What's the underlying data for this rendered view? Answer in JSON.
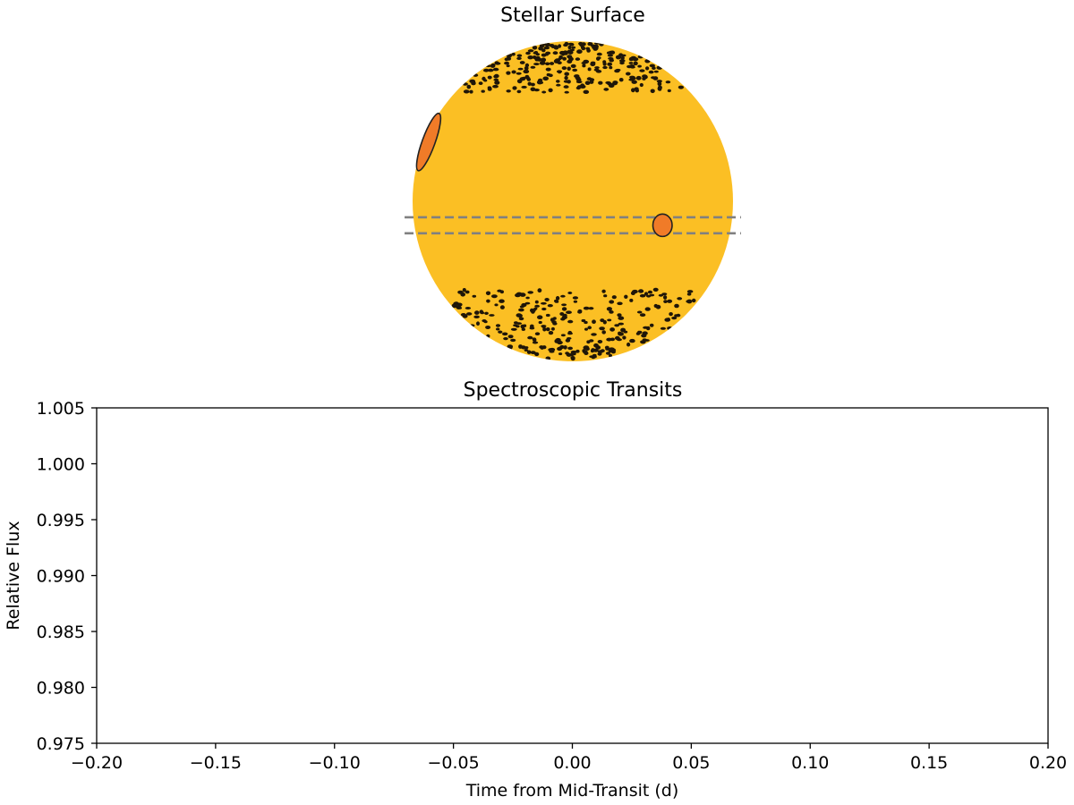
{
  "colors": {
    "star": "#fbbf24",
    "planet": "#f07b28",
    "spot_fill": "#1f1608",
    "outline": "#222222",
    "path_line": "#808080",
    "axes": "#000000",
    "background": "#ffffff"
  },
  "icons": {
    "star": "star-disk-icon",
    "planet": "planet-disk-icon"
  },
  "chart_data": [
    {
      "type": "other",
      "description_kind": "stellar-surface-map",
      "title": "Stellar Surface",
      "axes_visible": false,
      "coordinate_system": "normalized stellar disk, x and y in units of stellar radius",
      "star": {
        "center": [
          0,
          0
        ],
        "radius": 1
      },
      "transit_chord": {
        "y_range": [
          -0.2,
          -0.1
        ],
        "line_style": "dashed"
      },
      "planets": [
        {
          "id": "planet-on-chord",
          "center": [
            0.56,
            -0.15
          ],
          "rx": 0.06,
          "ry": 0.07,
          "rotation_deg": 0
        },
        {
          "id": "planet-near-limb",
          "center": [
            -0.9,
            0.37
          ],
          "rx": 0.04,
          "ry": 0.19,
          "rotation_deg": 20
        }
      ],
      "spot_bands": [
        {
          "id": "north",
          "y_range": [
            0.68,
            0.99
          ],
          "approx_count": 260
        },
        {
          "id": "south",
          "y_range": [
            -0.99,
            -0.55
          ],
          "approx_count": 260
        }
      ]
    },
    {
      "type": "line",
      "title": "Spectroscopic Transits",
      "xlabel": "Time from Mid-Transit (d)",
      "ylabel": "Relative Flux",
      "xlim": [
        -0.2,
        0.2
      ],
      "ylim": [
        0.975,
        1.005
      ],
      "x_ticks": [
        -0.2,
        -0.15,
        -0.1,
        -0.05,
        0.0,
        0.05,
        0.1,
        0.15,
        0.2
      ],
      "x_tick_labels": [
        "−0.20",
        "−0.15",
        "−0.10",
        "−0.05",
        "0.00",
        "0.05",
        "0.10",
        "0.15",
        "0.20"
      ],
      "y_ticks": [
        0.975,
        0.98,
        0.985,
        0.99,
        0.995,
        1.0,
        1.005
      ],
      "y_tick_labels": [
        "0.975",
        "0.980",
        "0.985",
        "0.990",
        "0.995",
        "1.000",
        "1.005"
      ],
      "grid": false,
      "series": []
    }
  ]
}
